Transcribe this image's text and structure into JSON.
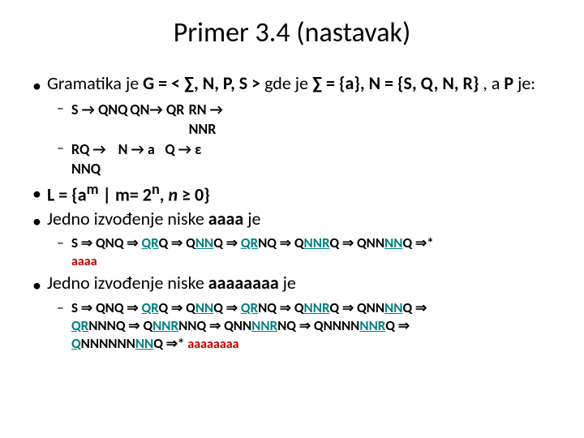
{
  "title": "Primer 3.4 (nastavak)",
  "grammar_intro": {
    "prefix": "Gramatika je ",
    "gdef": "G = < ∑, N, P, S > ",
    "gde": "gde je ",
    "sigma": "∑ = {a}, ",
    "nset": "N = {S, Q, N, R}",
    "apje": " , a ",
    "pbold": "P",
    "je": " je:"
  },
  "rules": {
    "col1_line1": "S → QNQ",
    "col1_line2": "RQ → NNQ",
    "col2_line1": "QN→ QR",
    "col2_line2": "N → a",
    "col3_line1": "RN → NNR",
    "col3_line2": "Q → ε"
  },
  "language": {
    "prefix": "L = {a",
    "sup_m": "m",
    "mid": " | m= 2",
    "sup_n": "n",
    "close": ", ",
    "n_italic": "n",
    "ge": " ≥ 0}"
  },
  "deriv4_intro": {
    "prefix": "Jedno izvođenje niske ",
    "aaaa": "aaaa",
    "suffix": " je"
  },
  "deriv4": {
    "s": "S ",
    "t1": "QNQ",
    "t2_q": "Q",
    "t2_r": "R",
    "t2_q2": "Q",
    "t3_q": "Q",
    "t3_nn": "NN",
    "t3_q2": "Q",
    "t4_q": "Q",
    "t4_r": "R",
    "t4_nq": "NQ",
    "t5_q": "Q",
    "t5_nn": "NN",
    "t5_r": "R",
    "t5_q2": "Q",
    "t6_q": "Q",
    "t6_nn": "NN",
    "t6_nn2": "NN",
    "result": "aaaa"
  },
  "deriv8_intro": {
    "prefix": "Jedno izvođenje niske ",
    "aaaa": "aaaaaaaa",
    "suffix": " je"
  },
  "deriv8": {
    "result": "aaaaaaaa"
  },
  "colors": {
    "text": "#000000",
    "red": "#c00000",
    "teal": "#008080",
    "bg": "#ffffff"
  }
}
